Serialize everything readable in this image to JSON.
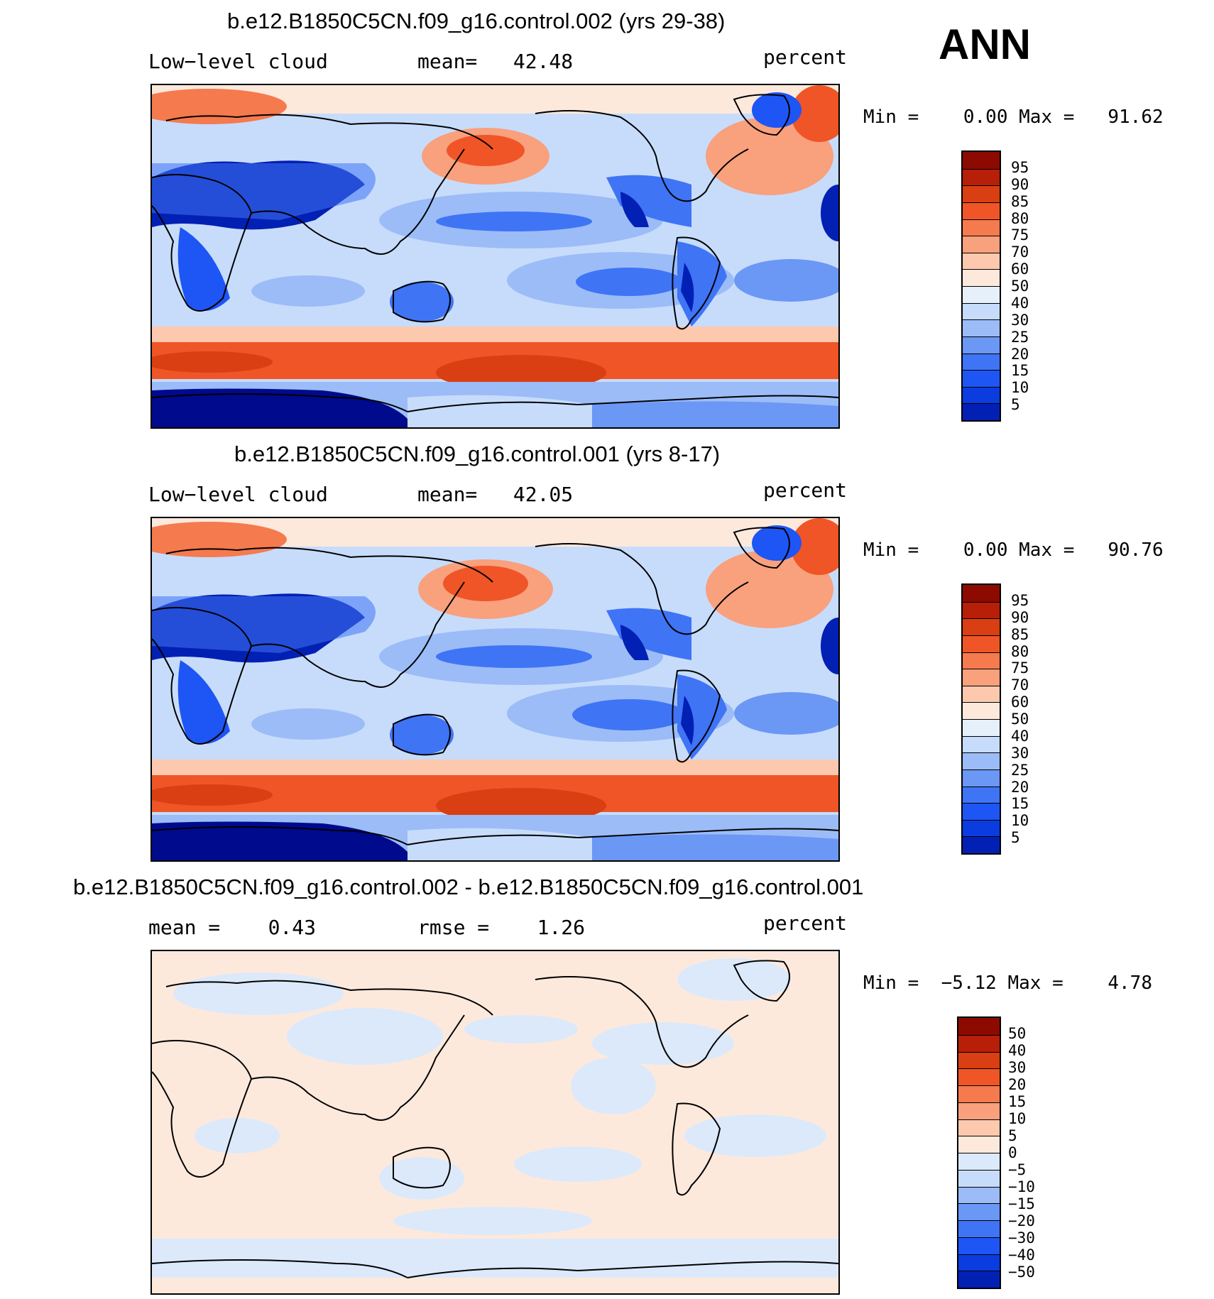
{
  "season": "ANN",
  "panels": [
    {
      "title": "b.e12.B1850C5CN.f09_g16.control.002 (yrs 29-38)",
      "variable": "Low−level cloud",
      "stat1": "mean=   42.48",
      "units": "percent",
      "minmax": "Min =    0.00 Max =   91.62",
      "colorbar_labels": [
        "95",
        "90",
        "85",
        "80",
        "75",
        "70",
        "60",
        "50",
        "40",
        "30",
        "25",
        "20",
        "15",
        "10",
        "5"
      ]
    },
    {
      "title": "b.e12.B1850C5CN.f09_g16.control.001 (yrs 8-17)",
      "variable": "Low−level cloud",
      "stat1": "mean=   42.05",
      "units": "percent",
      "minmax": "Min =    0.00 Max =   90.76",
      "colorbar_labels": [
        "95",
        "90",
        "85",
        "80",
        "75",
        "70",
        "60",
        "50",
        "40",
        "30",
        "25",
        "20",
        "15",
        "10",
        "5"
      ]
    },
    {
      "title": "b.e12.B1850C5CN.f09_g16.control.002 - b.e12.B1850C5CN.f09_g16.control.001",
      "variable": "mean =    0.43",
      "stat1": "rmse =    1.26",
      "units": "percent",
      "minmax": "Min =  −5.12 Max =    4.78",
      "colorbar_labels": [
        "50",
        "40",
        "30",
        "20",
        "15",
        "10",
        "5",
        "0",
        "−5",
        "−10",
        "−15",
        "−20",
        "−30",
        "−40",
        "−50"
      ]
    }
  ],
  "colors": {
    "abs_scale": [
      "#000a8c",
      "#0320b4",
      "#0a3ce0",
      "#1e55f5",
      "#3f74f5",
      "#6b97f5",
      "#9bbcf7",
      "#c7dcfb",
      "#e6f0fb",
      "#fde9dc",
      "#fcc9ae",
      "#f9a07d",
      "#f57a4e",
      "#ef5526",
      "#d93f12",
      "#b81f08",
      "#8c0a00"
    ],
    "diff_scale": [
      "#000a8c",
      "#0320b4",
      "#0a3ce0",
      "#1e55f5",
      "#3f74f5",
      "#6b97f5",
      "#9bbcf7",
      "#c7dcfb",
      "#dce9fb",
      "#fde9dc",
      "#fcc9ae",
      "#f9a07d",
      "#f57a4e",
      "#ef5526",
      "#d93f12",
      "#b81f08",
      "#8c0a00"
    ]
  }
}
